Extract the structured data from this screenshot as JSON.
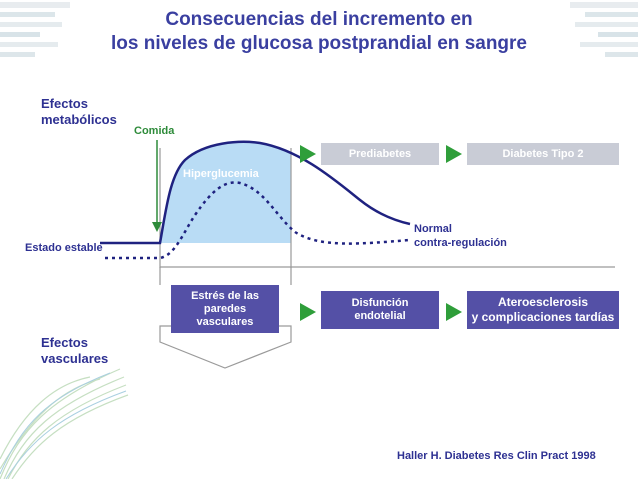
{
  "title": {
    "line1": "Consecuencias del incremento en",
    "line2": "los niveles de glucosa postprandial en sangre"
  },
  "labels": {
    "metabolic_line1": "Efectos",
    "metabolic_line2": "metabólicos",
    "meal": "Comida",
    "steady_state": "Estado estable",
    "hyperglycemia": "Hiperglucemia",
    "normal_line1": "Normal",
    "normal_line2": "contra-regulación",
    "vascular_line1": "Efectos",
    "vascular_line2": "vasculares"
  },
  "boxes": {
    "prediabetes": "Prediabetes",
    "diabetes": "Diabetes Tipo 2",
    "stress_line1": "Estrés de las",
    "stress_line2": "paredes",
    "stress_line3": "vasculares",
    "dysfunction_line1": "Disfunción",
    "dysfunction_line2": "endotelial",
    "athero_line1": "Ateroesclerosis",
    "athero_line2": "y complicaciones tardías"
  },
  "citation": "Haller H. Diabetes Res Clin Pract 1998",
  "colors": {
    "title": "#3a3fa0",
    "label_blue": "#2e3192",
    "meal_green": "#2e8b3a",
    "curve_navy": "#1f2280",
    "fill_light_blue": "#b9dcf5",
    "arrow_green": "#2f9e3a",
    "grey_box": "#c9ccd6",
    "navy_box": "#5450a6"
  }
}
